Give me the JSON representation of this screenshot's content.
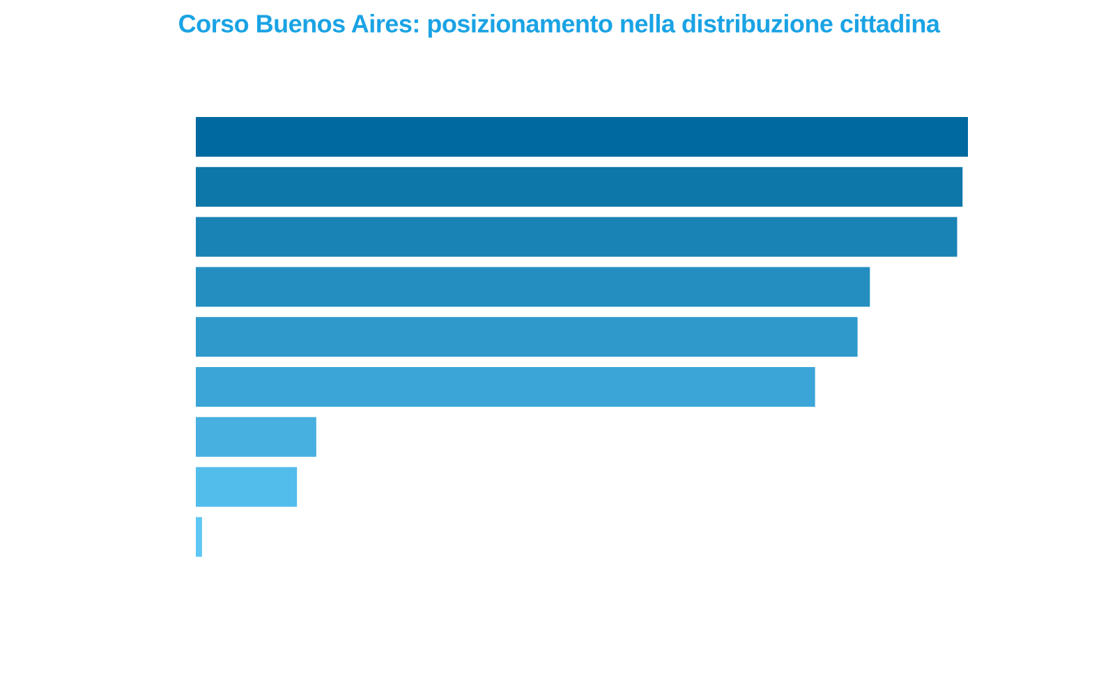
{
  "chart_data": {
    "type": "barh",
    "title": "Corso Buenos Aires: posizionamento nella distribuzione cittadina",
    "categories": [
      null,
      null,
      null,
      null,
      null,
      null,
      null,
      null,
      null
    ],
    "values": [
      100,
      99.3,
      98.6,
      87.3,
      85.7,
      80.2,
      15.6,
      13.1,
      0.8
    ],
    "colors": [
      "#0069a0",
      "#0e77aa",
      "#1a83b5",
      "#248ec0",
      "#2f99cb",
      "#3ca5d7",
      "#47b0e0",
      "#52bceb",
      "#5ec7f5"
    ],
    "xlim": [
      0,
      100
    ]
  }
}
